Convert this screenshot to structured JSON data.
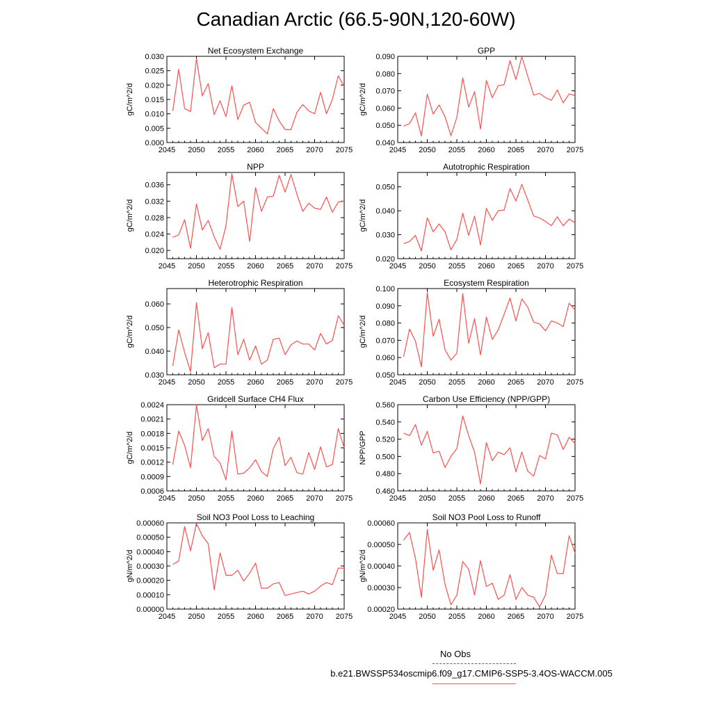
{
  "title": "Canadian Arctic (66.5-90N,120-60W)",
  "legend": {
    "obs_label": "No Obs",
    "obs_color": "#4d4dff",
    "case_label": "b.e21.BWSSP534oscmip6.f09_g17.CMIP6-SSP5-3.4OS-WACCM.005",
    "case_color": "#ff4d4d"
  },
  "chart_data": [
    {
      "type": "line",
      "title": "Net Ecosystem Exchange",
      "ylabel": "gC/m^2/d",
      "xlim": [
        2045,
        2075
      ],
      "xticks": [
        "2045",
        "2050",
        "2055",
        "2060",
        "2065",
        "2070",
        "2075"
      ],
      "ylim": [
        0.0,
        0.03
      ],
      "yticks": [
        "0.000",
        "0.005",
        "0.010",
        "0.015",
        "0.020",
        "0.025",
        "0.030"
      ],
      "x": [
        2046,
        2047,
        2048,
        2049,
        2050,
        2051,
        2052,
        2053,
        2054,
        2055,
        2056,
        2057,
        2058,
        2059,
        2060,
        2061,
        2062,
        2063,
        2064,
        2065,
        2066,
        2067,
        2068,
        2069,
        2070,
        2071,
        2072,
        2073,
        2074,
        2075
      ],
      "values": [
        0.011,
        0.0255,
        0.0118,
        0.0108,
        0.0292,
        0.0162,
        0.0205,
        0.0097,
        0.0145,
        0.009,
        0.0198,
        0.008,
        0.013,
        0.014,
        0.007,
        0.005,
        0.003,
        0.0118,
        0.0075,
        0.0045,
        0.0045,
        0.0105,
        0.0132,
        0.011,
        0.01,
        0.0175,
        0.01,
        0.015,
        0.0232,
        0.0195
      ]
    },
    {
      "type": "line",
      "title": "GPP",
      "ylabel": "gC/m^2/d",
      "xlim": [
        2045,
        2075
      ],
      "xticks": [
        "2045",
        "2050",
        "2055",
        "2060",
        "2065",
        "2070",
        "2075"
      ],
      "ylim": [
        0.04,
        0.09
      ],
      "yticks": [
        "0.040",
        "0.050",
        "0.060",
        "0.070",
        "0.080",
        "0.090"
      ],
      "x": [
        2046,
        2047,
        2048,
        2049,
        2050,
        2051,
        2052,
        2053,
        2054,
        2055,
        2056,
        2057,
        2058,
        2059,
        2060,
        2061,
        2062,
        2063,
        2064,
        2065,
        2066,
        2067,
        2068,
        2069,
        2070,
        2071,
        2072,
        2073,
        2074,
        2075
      ],
      "values": [
        0.0495,
        0.051,
        0.0572,
        0.0438,
        0.068,
        0.0565,
        0.0618,
        0.055,
        0.044,
        0.0545,
        0.0775,
        0.0605,
        0.0695,
        0.0478,
        0.076,
        0.066,
        0.073,
        0.0735,
        0.0875,
        0.0765,
        0.0898,
        0.0785,
        0.0675,
        0.0685,
        0.066,
        0.0645,
        0.0705,
        0.063,
        0.0682,
        0.0672
      ]
    },
    {
      "type": "line",
      "title": "NPP",
      "ylabel": "gC/m^2/d",
      "xlim": [
        2045,
        2075
      ],
      "xticks": [
        "2045",
        "2050",
        "2055",
        "2060",
        "2065",
        "2070",
        "2075"
      ],
      "ylim": [
        0.018,
        0.039
      ],
      "yticks": [
        "0.020",
        "0.024",
        "0.028",
        "0.032",
        "0.036"
      ],
      "x": [
        2046,
        2047,
        2048,
        2049,
        2050,
        2051,
        2052,
        2053,
        2054,
        2055,
        2056,
        2057,
        2058,
        2059,
        2060,
        2061,
        2062,
        2063,
        2064,
        2065,
        2066,
        2067,
        2068,
        2069,
        2070,
        2071,
        2072,
        2073,
        2074,
        2075
      ],
      "values": [
        0.0232,
        0.0238,
        0.0275,
        0.0205,
        0.0313,
        0.025,
        0.0273,
        0.0233,
        0.0203,
        0.026,
        0.0387,
        0.0307,
        0.032,
        0.0222,
        0.0353,
        0.0295,
        0.033,
        0.0332,
        0.0383,
        0.0342,
        0.0385,
        0.0337,
        0.0295,
        0.0315,
        0.0303,
        0.03,
        0.033,
        0.0293,
        0.0318,
        0.032
      ]
    },
    {
      "type": "line",
      "title": "Autotrophic Respiration",
      "ylabel": "gC/m^2/d",
      "xlim": [
        2045,
        2075
      ],
      "xticks": [
        "2045",
        "2050",
        "2055",
        "2060",
        "2065",
        "2070",
        "2075"
      ],
      "ylim": [
        0.02,
        0.056
      ],
      "yticks": [
        "0.020",
        "0.030",
        "0.040",
        "0.050"
      ],
      "x": [
        2046,
        2047,
        2048,
        2049,
        2050,
        2051,
        2052,
        2053,
        2054,
        2055,
        2056,
        2057,
        2058,
        2059,
        2060,
        2061,
        2062,
        2063,
        2064,
        2065,
        2066,
        2067,
        2068,
        2069,
        2070,
        2071,
        2072,
        2073,
        2074,
        2075
      ],
      "values": [
        0.0262,
        0.0272,
        0.0297,
        0.0232,
        0.037,
        0.0312,
        0.0345,
        0.0312,
        0.0237,
        0.028,
        0.039,
        0.0297,
        0.0377,
        0.0257,
        0.041,
        0.036,
        0.04,
        0.0403,
        0.0493,
        0.044,
        0.051,
        0.0445,
        0.0378,
        0.037,
        0.0355,
        0.0338,
        0.0375,
        0.0337,
        0.0365,
        0.035
      ]
    },
    {
      "type": "line",
      "title": "Heterotrophic Respiration",
      "ylabel": "gC/m^2/d",
      "xlim": [
        2045,
        2075
      ],
      "xticks": [
        "2045",
        "2050",
        "2055",
        "2060",
        "2065",
        "2070",
        "2075"
      ],
      "ylim": [
        0.03,
        0.0665
      ],
      "yticks": [
        "0.030",
        "0.040",
        "0.050",
        "0.060"
      ],
      "x": [
        2046,
        2047,
        2048,
        2049,
        2050,
        2051,
        2052,
        2053,
        2054,
        2055,
        2056,
        2057,
        2058,
        2059,
        2060,
        2061,
        2062,
        2063,
        2064,
        2065,
        2066,
        2067,
        2068,
        2069,
        2070,
        2071,
        2072,
        2073,
        2074,
        2075
      ],
      "values": [
        0.0338,
        0.049,
        0.0395,
        0.0313,
        0.0605,
        0.041,
        0.0478,
        0.033,
        0.0345,
        0.0345,
        0.0585,
        0.0385,
        0.045,
        0.0362,
        0.0422,
        0.0345,
        0.0362,
        0.045,
        0.0455,
        0.0385,
        0.0427,
        0.0443,
        0.043,
        0.043,
        0.0405,
        0.0475,
        0.043,
        0.0445,
        0.055,
        0.051
      ]
    },
    {
      "type": "line",
      "title": "Ecosystem Respiration",
      "ylabel": "gC/m^2/d",
      "xlim": [
        2045,
        2075
      ],
      "xticks": [
        "2045",
        "2050",
        "2055",
        "2060",
        "2065",
        "2070",
        "2075"
      ],
      "ylim": [
        0.05,
        0.1
      ],
      "yticks": [
        "0.050",
        "0.060",
        "0.070",
        "0.080",
        "0.090",
        "0.100"
      ],
      "x": [
        2046,
        2047,
        2048,
        2049,
        2050,
        2051,
        2052,
        2053,
        2054,
        2055,
        2056,
        2057,
        2058,
        2059,
        2060,
        2061,
        2062,
        2063,
        2064,
        2065,
        2066,
        2067,
        2068,
        2069,
        2070,
        2071,
        2072,
        2073,
        2074,
        2075
      ],
      "values": [
        0.0605,
        0.0765,
        0.0695,
        0.0545,
        0.0975,
        0.0723,
        0.0822,
        0.0645,
        0.0585,
        0.0625,
        0.0972,
        0.0683,
        0.0825,
        0.0615,
        0.0835,
        0.0705,
        0.076,
        0.085,
        0.0945,
        0.0812,
        0.094,
        0.0892,
        0.0805,
        0.0795,
        0.0755,
        0.0812,
        0.08,
        0.078,
        0.0915,
        0.0875
      ]
    },
    {
      "type": "line",
      "title": "Gridcell Surface CH4 Flux",
      "ylabel": "gC/m^2/d",
      "xlim": [
        2045,
        2075
      ],
      "xticks": [
        "2045",
        "2050",
        "2055",
        "2060",
        "2065",
        "2070",
        "2075"
      ],
      "ylim": [
        0.0006,
        0.0024
      ],
      "yticks": [
        "0.0006",
        "0.0009",
        "0.0012",
        "0.0015",
        "0.0018",
        "0.0021",
        "0.0024"
      ],
      "x": [
        2046,
        2047,
        2048,
        2049,
        2050,
        2051,
        2052,
        2053,
        2054,
        2055,
        2056,
        2057,
        2058,
        2059,
        2060,
        2061,
        2062,
        2063,
        2064,
        2065,
        2066,
        2067,
        2068,
        2069,
        2070,
        2071,
        2072,
        2073,
        2074,
        2075
      ],
      "values": [
        0.00115,
        0.00185,
        0.00155,
        0.00108,
        0.0024,
        0.00165,
        0.0019,
        0.00132,
        0.00118,
        0.00083,
        0.00185,
        0.00095,
        0.00097,
        0.00108,
        0.00125,
        0.001,
        0.0009,
        0.00148,
        0.00172,
        0.00113,
        0.0013,
        0.00098,
        0.00095,
        0.0014,
        0.00105,
        0.00152,
        0.0011,
        0.00115,
        0.0019,
        0.0015
      ]
    },
    {
      "type": "line",
      "title": "Carbon Use Efficiency (NPP/GPP)",
      "ylabel": "NPP/GPP",
      "xlim": [
        2045,
        2075
      ],
      "xticks": [
        "2045",
        "2050",
        "2055",
        "2060",
        "2065",
        "2070",
        "2075"
      ],
      "ylim": [
        0.46,
        0.56
      ],
      "yticks": [
        "0.460",
        "0.480",
        "0.500",
        "0.520",
        "0.540",
        "0.560"
      ],
      "x": [
        2046,
        2047,
        2048,
        2049,
        2050,
        2051,
        2052,
        2053,
        2054,
        2055,
        2056,
        2057,
        2058,
        2059,
        2060,
        2061,
        2062,
        2063,
        2064,
        2065,
        2066,
        2067,
        2068,
        2069,
        2070,
        2071,
        2072,
        2073,
        2074,
        2075
      ],
      "values": [
        0.527,
        0.524,
        0.537,
        0.513,
        0.529,
        0.504,
        0.506,
        0.487,
        0.5,
        0.509,
        0.547,
        0.524,
        0.505,
        0.468,
        0.516,
        0.495,
        0.505,
        0.502,
        0.51,
        0.482,
        0.505,
        0.483,
        0.477,
        0.501,
        0.497,
        0.527,
        0.525,
        0.508,
        0.522,
        0.515
      ]
    },
    {
      "type": "line",
      "title": "Soil NO3 Pool Loss to Leaching",
      "ylabel": "gN/m^2/d",
      "xlim": [
        2045,
        2075
      ],
      "xticks": [
        "2045",
        "2050",
        "2055",
        "2060",
        "2065",
        "2070",
        "2075"
      ],
      "ylim": [
        0.0,
        0.0006
      ],
      "yticks": [
        "0.00000",
        "0.00010",
        "0.00020",
        "0.00030",
        "0.00040",
        "0.00050",
        "0.00060"
      ],
      "x": [
        2046,
        2047,
        2048,
        2049,
        2050,
        2051,
        2052,
        2053,
        2054,
        2055,
        2056,
        2057,
        2058,
        2059,
        2060,
        2061,
        2062,
        2063,
        2064,
        2065,
        2066,
        2067,
        2068,
        2069,
        2070,
        2071,
        2072,
        2073,
        2074,
        2075
      ],
      "values": [
        0.00031,
        0.000335,
        0.000575,
        0.000405,
        0.000595,
        0.00051,
        0.000455,
        0.000135,
        0.00039,
        0.000235,
        0.000235,
        0.00027,
        0.000195,
        0.00025,
        0.00032,
        0.000145,
        0.000145,
        0.000175,
        0.000185,
        9.5e-05,
        0.000105,
        0.000115,
        0.000125,
        0.000105,
        0.000125,
        0.00016,
        0.000185,
        0.00017,
        0.000285,
        0.000285
      ]
    },
    {
      "type": "line",
      "title": "Soil NO3 Pool Loss to Runoff",
      "ylabel": "gN/m^2/d",
      "xlim": [
        2045,
        2075
      ],
      "xticks": [
        "2045",
        "2050",
        "2055",
        "2060",
        "2065",
        "2070",
        "2075"
      ],
      "ylim": [
        0.0002,
        0.0006
      ],
      "yticks": [
        "0.00020",
        "0.00030",
        "0.00040",
        "0.00050",
        "0.00060"
      ],
      "x": [
        2046,
        2047,
        2048,
        2049,
        2050,
        2051,
        2052,
        2053,
        2054,
        2055,
        2056,
        2057,
        2058,
        2059,
        2060,
        2061,
        2062,
        2063,
        2064,
        2065,
        2066,
        2067,
        2068,
        2069,
        2070,
        2071,
        2072,
        2073,
        2074,
        2075
      ],
      "values": [
        0.00052,
        0.000555,
        0.000435,
        0.000255,
        0.00057,
        0.00038,
        0.000475,
        0.000315,
        0.00022,
        0.000265,
        0.00042,
        0.000385,
        0.000265,
        0.000425,
        0.000305,
        0.00032,
        0.000245,
        0.000265,
        0.00036,
        0.000245,
        0.0003,
        0.000265,
        0.000255,
        0.00021,
        0.000265,
        0.00045,
        0.000365,
        0.000365,
        0.00054,
        0.00046
      ]
    }
  ]
}
